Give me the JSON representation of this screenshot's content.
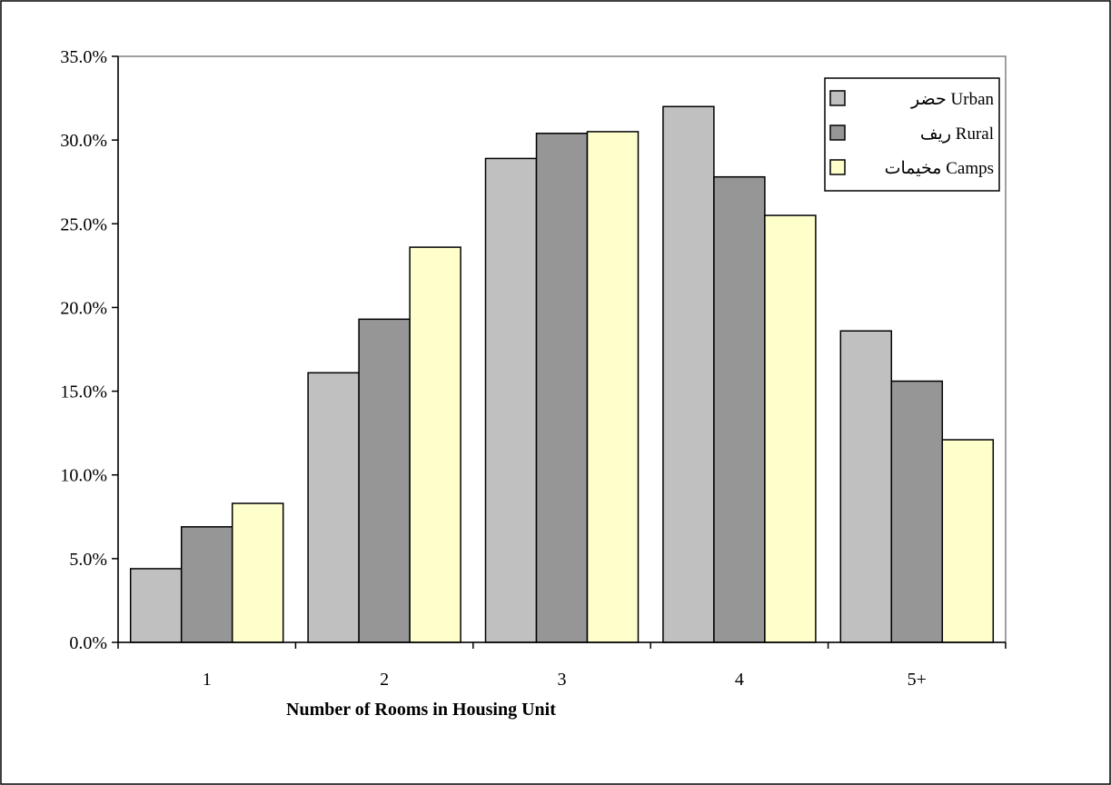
{
  "chart_data": {
    "type": "bar",
    "title": "",
    "xlabel": "Number of Rooms in Housing Unit",
    "ylabel": "",
    "categories": [
      "1",
      "2",
      "3",
      "4",
      "5+"
    ],
    "ylim": [
      0,
      35
    ],
    "yticks": [
      "0.0%",
      "5.0%",
      "10.0%",
      "15.0%",
      "20.0%",
      "25.0%",
      "30.0%",
      "35.0%"
    ],
    "ytick_values": [
      0,
      5,
      10,
      15,
      20,
      25,
      30,
      35
    ],
    "grid": false,
    "legend_position": "top-right",
    "series": [
      {
        "name": "حضر Urban",
        "color": "#c0c0c0",
        "values": [
          4.4,
          16.1,
          28.9,
          32.0,
          18.6
        ]
      },
      {
        "name": "ريف Rural",
        "color": "#969696",
        "values": [
          6.9,
          19.3,
          30.4,
          27.8,
          15.6
        ]
      },
      {
        "name": "مخيمات Camps",
        "color": "#ffffcc",
        "values": [
          8.3,
          23.6,
          30.5,
          25.5,
          12.1
        ]
      }
    ]
  }
}
